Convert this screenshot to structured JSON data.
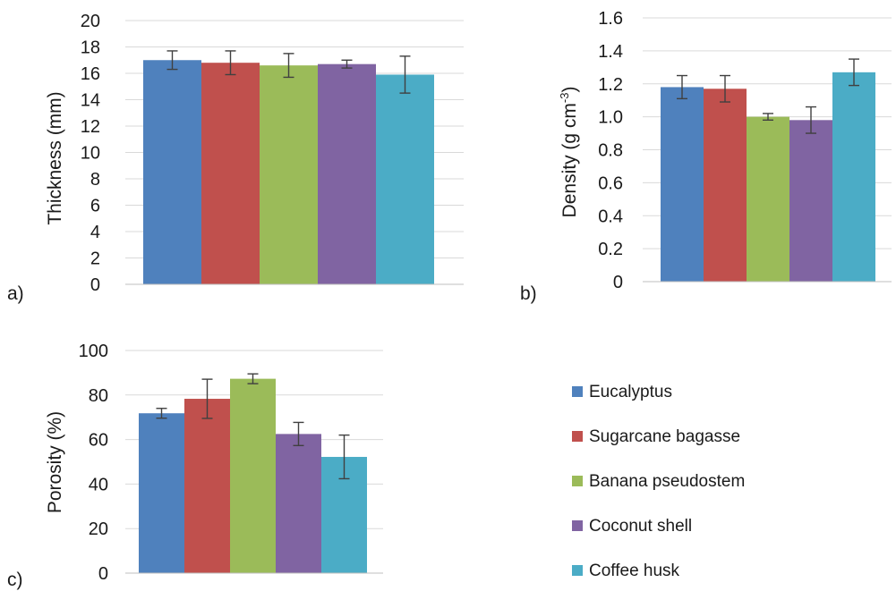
{
  "legend": {
    "placement": "bottom-right",
    "items": [
      {
        "label": "Eucalyptus",
        "color": "#4f81bd"
      },
      {
        "label": "Sugarcane bagasse",
        "color": "#c0504d"
      },
      {
        "label": "Banana pseudostem",
        "color": "#9bbb59"
      },
      {
        "label": "Coconut shell",
        "color": "#8064a2"
      },
      {
        "label": "Coffee husk",
        "color": "#4bacc6"
      }
    ]
  },
  "chart_data": [
    {
      "type": "bar",
      "panel_label": "a)",
      "xlabel": "",
      "ylabel": "Thickness (mm)",
      "ylim": [
        0,
        20
      ],
      "yticks": [
        "0",
        "2",
        "4",
        "6",
        "8",
        "10",
        "12",
        "14",
        "16",
        "18",
        "20"
      ],
      "ytick_values": [
        0,
        2,
        4,
        6,
        8,
        10,
        12,
        14,
        16,
        18,
        20
      ],
      "grid": true,
      "categories": [
        "Eucalyptus",
        "Sugarcane bagasse",
        "Banana pseudostem",
        "Coconut shell",
        "Coffee husk"
      ],
      "values": [
        17.0,
        16.8,
        16.6,
        16.7,
        15.9
      ],
      "errors": [
        0.7,
        0.9,
        0.9,
        0.3,
        1.4
      ]
    },
    {
      "type": "bar",
      "panel_label": "b)",
      "xlabel": "",
      "ylabel": "Density (g cm",
      "ylabel_sup": "-3",
      "ylabel_end": ")",
      "ylim": [
        0,
        1.6
      ],
      "yticks": [
        "0",
        "0.2",
        "0.4",
        "0.6",
        "0.8",
        "1.0",
        "1.2",
        "1.4",
        "1.6"
      ],
      "ytick_values": [
        0,
        0.2,
        0.4,
        0.6,
        0.8,
        1.0,
        1.2,
        1.4,
        1.6
      ],
      "grid": true,
      "categories": [
        "Eucalyptus",
        "Sugarcane bagasse",
        "Banana pseudostem",
        "Coconut shell",
        "Coffee husk"
      ],
      "values": [
        1.18,
        1.17,
        1.0,
        0.98,
        1.27
      ],
      "errors": [
        0.07,
        0.08,
        0.02,
        0.08,
        0.08
      ]
    },
    {
      "type": "bar",
      "panel_label": "c)",
      "xlabel": "",
      "ylabel": "Porosity (%)",
      "ylim": [
        0,
        100
      ],
      "yticks": [
        "0",
        "20",
        "40",
        "60",
        "80",
        "100"
      ],
      "ytick_values": [
        0,
        20,
        40,
        60,
        80,
        100
      ],
      "grid": true,
      "categories": [
        "Eucalyptus",
        "Sugarcane bagasse",
        "Banana pseudostem",
        "Coconut shell",
        "Coffee husk"
      ],
      "values": [
        71.8,
        78.3,
        87.3,
        62.5,
        52.2
      ],
      "errors": [
        2.2,
        8.8,
        2.2,
        5.2,
        9.8
      ]
    }
  ]
}
